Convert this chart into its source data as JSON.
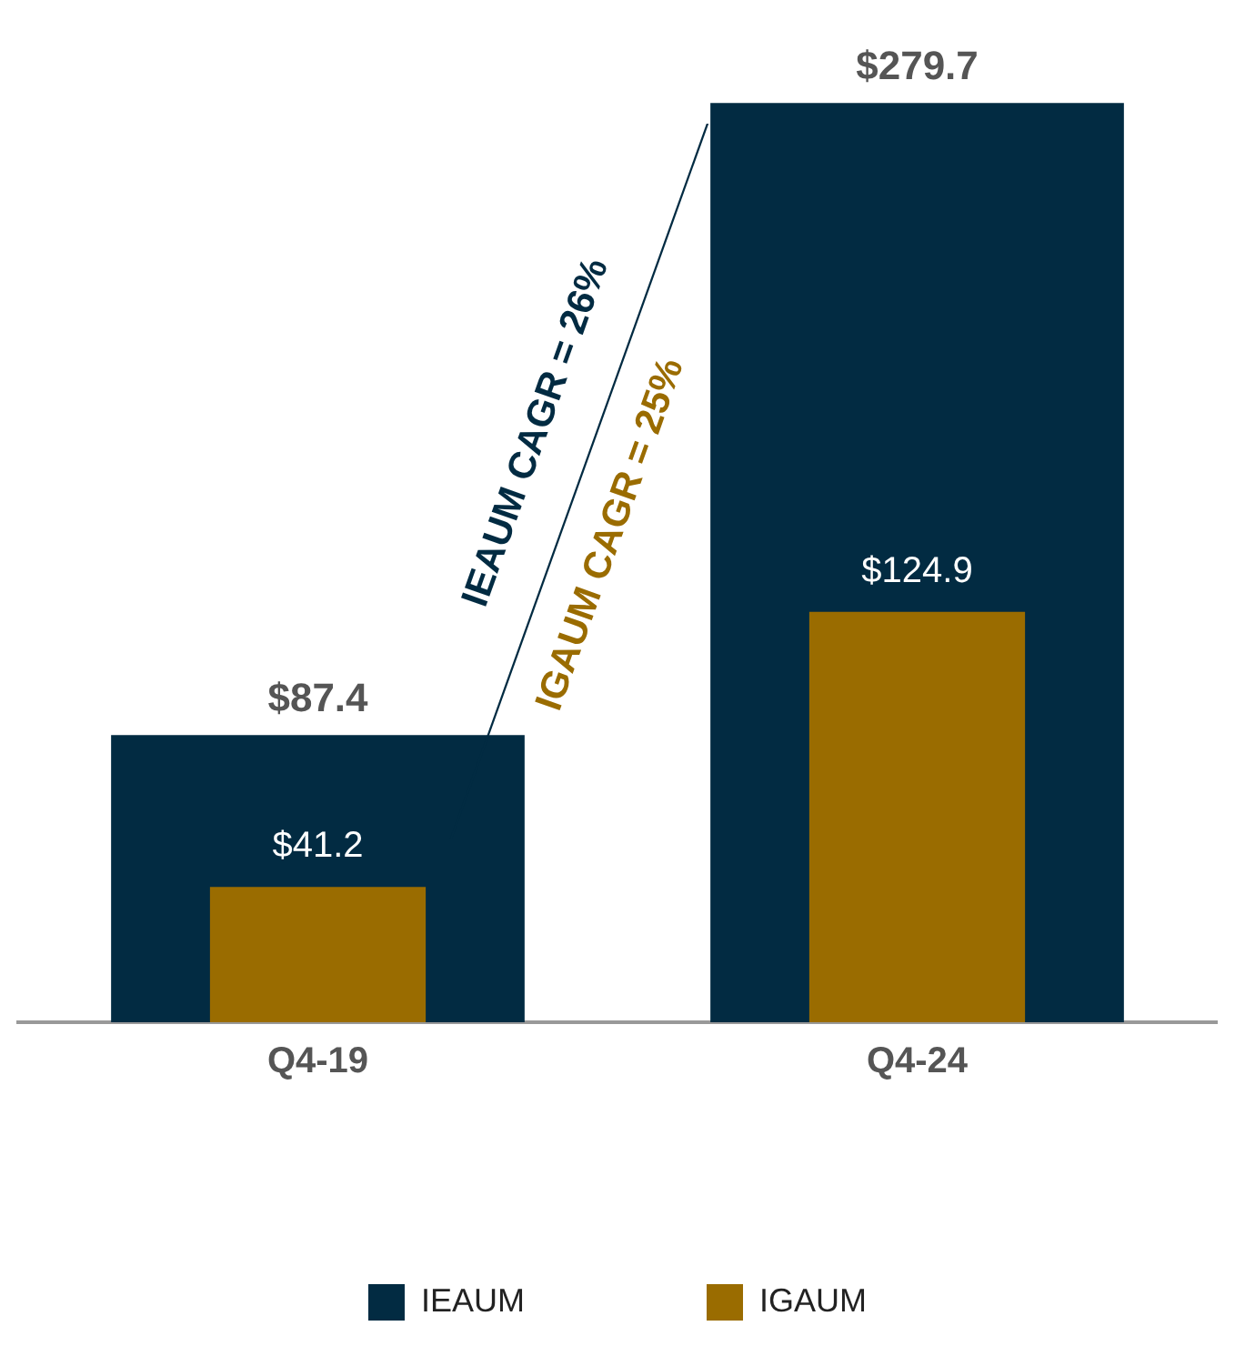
{
  "chart_data": {
    "type": "bar",
    "categories": [
      "Q4-19",
      "Q4-24"
    ],
    "series": [
      {
        "name": "IEAUM",
        "color": "#022b42",
        "values": [
          87.4,
          279.7
        ],
        "value_labels": [
          "$87.4",
          "$279.7"
        ]
      },
      {
        "name": "IGAUM",
        "color": "#9a6c00",
        "values": [
          41.2,
          124.9
        ],
        "value_labels": [
          "$41.2",
          "$124.9"
        ]
      }
    ],
    "annotations": [
      "IEAUM CAGR = 26%",
      "IGAUM CAGR = 25%"
    ],
    "legend": "bottom",
    "grid": false
  }
}
